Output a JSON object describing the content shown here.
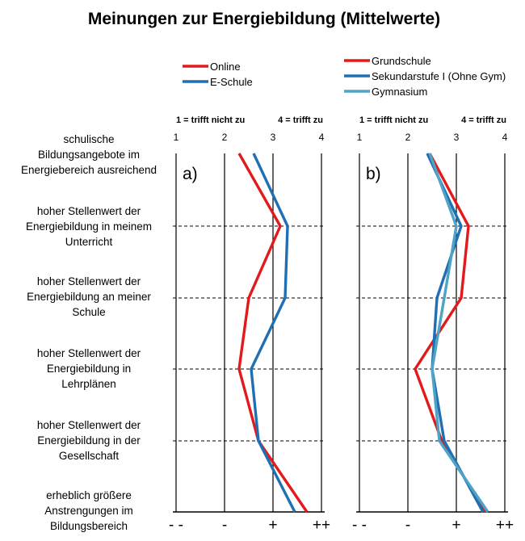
{
  "chart_data": {
    "type": "line",
    "title": "Meinungen zur Energiebildung (Mittelwerte)",
    "xlim": [
      1,
      4
    ],
    "x_ticks": [
      "1",
      "2",
      "3",
      "4"
    ],
    "scale_left": "1 = trifft nicht zu",
    "scale_right": "4 = trifft zu",
    "symbols": [
      "- -",
      "-",
      "+",
      "++"
    ],
    "grid": true,
    "colors": {
      "red": "#e31a1c",
      "blue": "#1f6fb2",
      "light_blue": "#4fa3c7"
    },
    "items": [
      "schulische Bildungsangebote im Energiebereich ausreichend",
      "hoher Stellenwert der Energiebildung in meinem Unterricht",
      "hoher Stellenwert der Energiebildung  an meiner Schule",
      "hoher Stellenwert der Energiebildung in Lehrplänen",
      "hoher Stellenwert der Energiebildung in der Gesellschaft",
      "erheblich größere Anstrengungen im Bildungsbereich"
    ],
    "item_lines": [
      [
        "schulische",
        "Bildungsangebote im",
        "Energiebereich ausreichend"
      ],
      [
        "hoher Stellenwert der",
        "Energiebildung in meinem",
        "Unterricht"
      ],
      [
        "hoher Stellenwert der",
        "Energiebildung  an meiner",
        "Schule"
      ],
      [
        "hoher Stellenwert der",
        "Energiebildung in",
        "Lehrplänen"
      ],
      [
        "hoher Stellenwert der",
        "Energiebildung in der",
        "Gesellschaft"
      ],
      [
        "erheblich größere",
        "Anstrengungen im",
        "Bildungsbereich"
      ]
    ],
    "panels": [
      {
        "label": "a)",
        "series": [
          {
            "name": "Online",
            "color": "#e31a1c",
            "values": [
              2.3,
              3.15,
              2.5,
              2.3,
              2.7,
              3.7
            ]
          },
          {
            "name": "E-Schule",
            "color": "#1f6fb2",
            "values": [
              2.6,
              3.3,
              3.25,
              2.55,
              2.7,
              3.45
            ]
          }
        ]
      },
      {
        "label": "b)",
        "series": [
          {
            "name": "Grundschule",
            "color": "#e31a1c",
            "values": [
              2.45,
              3.25,
              3.1,
              2.15,
              2.7,
              3.6
            ]
          },
          {
            "name": "Sekundarstufe I (Ohne Gym)",
            "color": "#1f6fb2",
            "values": [
              2.4,
              3.1,
              2.6,
              2.5,
              2.75,
              3.55
            ]
          },
          {
            "name": "Gymnasium",
            "color": "#4fa3c7",
            "values": [
              2.45,
              3.0,
              2.75,
              2.5,
              2.65,
              3.65
            ]
          }
        ]
      }
    ]
  }
}
